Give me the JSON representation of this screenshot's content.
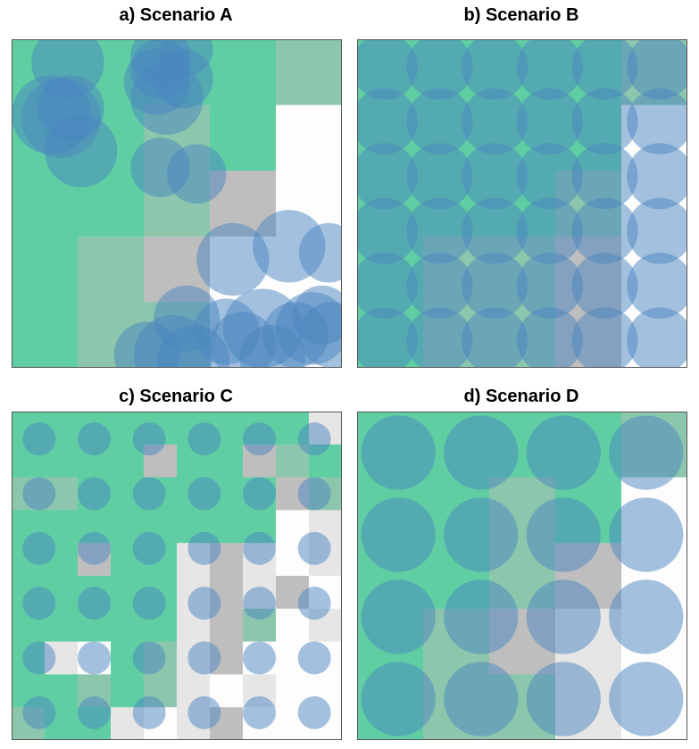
{
  "colors": {
    "habitat": "#5fcfa3",
    "mixed": "#8cc7ad",
    "grey_dark": "#bebebe",
    "grey_mid": "#cccccc",
    "grey_light": "#e6e6e6",
    "white": "#fdfdfd",
    "circle": "#4a86c0",
    "frame": "#555555"
  },
  "panels": [
    {
      "title": "a) Scenario A",
      "grid": {
        "cols": 5,
        "rows": 5,
        "cells": [
          [
            "H",
            "H",
            "H",
            "H",
            "M"
          ],
          [
            "H",
            "H",
            "M",
            "H",
            "W"
          ],
          [
            "H",
            "H",
            "M",
            "G",
            "W"
          ],
          [
            "H",
            "M",
            "G",
            "W",
            "W"
          ],
          [
            "H",
            "M",
            "M",
            "W",
            "W"
          ]
        ]
      },
      "circles": [
        [
          0.17,
          0.07,
          0.11
        ],
        [
          0.45,
          0.05,
          0.09
        ],
        [
          0.53,
          0.03,
          0.08
        ],
        [
          0.45,
          0.09,
          0.09
        ],
        [
          0.12,
          0.23,
          0.12
        ],
        [
          0.15,
          0.24,
          0.12
        ],
        [
          0.18,
          0.21,
          0.1
        ],
        [
          0.21,
          0.34,
          0.11
        ],
        [
          0.44,
          0.13,
          0.1
        ],
        [
          0.47,
          0.18,
          0.11
        ],
        [
          0.52,
          0.12,
          0.09
        ],
        [
          0.56,
          0.41,
          0.09
        ],
        [
          0.45,
          0.39,
          0.09
        ],
        [
          0.67,
          0.67,
          0.11
        ],
        [
          0.84,
          0.63,
          0.11
        ],
        [
          0.96,
          0.65,
          0.09
        ],
        [
          0.53,
          0.85,
          0.1
        ],
        [
          0.41,
          0.96,
          0.1
        ],
        [
          0.49,
          0.96,
          0.12
        ],
        [
          0.55,
          0.98,
          0.11
        ],
        [
          0.65,
          0.89,
          0.1
        ],
        [
          0.7,
          0.93,
          0.1
        ],
        [
          0.76,
          0.88,
          0.12
        ],
        [
          0.79,
          0.97,
          0.1
        ],
        [
          0.86,
          0.9,
          0.1
        ],
        [
          0.91,
          0.88,
          0.11
        ],
        [
          0.94,
          0.84,
          0.09
        ],
        [
          0.97,
          0.9,
          0.1
        ]
      ]
    },
    {
      "title": "b) Scenario B",
      "grid": {
        "cols": 5,
        "rows": 5,
        "cells": [
          [
            "H",
            "H",
            "H",
            "H",
            "M"
          ],
          [
            "H",
            "H",
            "H",
            "H",
            "W"
          ],
          [
            "H",
            "H",
            "H",
            "M",
            "W"
          ],
          [
            "H",
            "M",
            "M",
            "G",
            "W"
          ],
          [
            "H",
            "M",
            "M",
            "G",
            "W"
          ]
        ]
      },
      "circles_grid": {
        "cols": 6,
        "rows": 6,
        "r": 0.1
      }
    },
    {
      "title": "c) Scenario C",
      "grid": {
        "cols": 10,
        "rows": 10,
        "cells": [
          [
            "H",
            "H",
            "H",
            "H",
            "H",
            "H",
            "H",
            "H",
            "H",
            "L"
          ],
          [
            "H",
            "H",
            "H",
            "H",
            "G",
            "H",
            "H",
            "G",
            "M",
            "H"
          ],
          [
            "M",
            "M",
            "H",
            "H",
            "H",
            "H",
            "H",
            "H",
            "G",
            "M"
          ],
          [
            "H",
            "H",
            "H",
            "H",
            "H",
            "H",
            "H",
            "H",
            "W",
            "L"
          ],
          [
            "H",
            "H",
            "G",
            "H",
            "H",
            "L",
            "G",
            "L",
            "W",
            "L"
          ],
          [
            "H",
            "H",
            "H",
            "H",
            "H",
            "L",
            "G",
            "L",
            "G",
            "W"
          ],
          [
            "H",
            "H",
            "H",
            "H",
            "H",
            "L",
            "G",
            "M",
            "W",
            "L"
          ],
          [
            "H",
            "L",
            "W",
            "H",
            "M",
            "L",
            "G",
            "W",
            "W",
            "W"
          ],
          [
            "H",
            "H",
            "M",
            "H",
            "M",
            "L",
            "W",
            "L",
            "W",
            "W"
          ],
          [
            "M",
            "H",
            "H",
            "L",
            "W",
            "L",
            "G",
            "W",
            "W",
            "W"
          ]
        ]
      },
      "circles_grid": {
        "cols": 6,
        "rows": 6,
        "r": 0.05
      }
    },
    {
      "title": "d) Scenario D",
      "grid": {
        "cols": 5,
        "rows": 5,
        "cells": [
          [
            "H",
            "H",
            "H",
            "H",
            "M"
          ],
          [
            "H",
            "H",
            "M",
            "H",
            "W"
          ],
          [
            "H",
            "H",
            "M",
            "G",
            "W"
          ],
          [
            "H",
            "M",
            "G",
            "L",
            "W"
          ],
          [
            "H",
            "M",
            "M",
            "L",
            "W"
          ]
        ]
      },
      "circles_grid": {
        "cols": 4,
        "rows": 4,
        "r": 0.1125
      }
    }
  ]
}
